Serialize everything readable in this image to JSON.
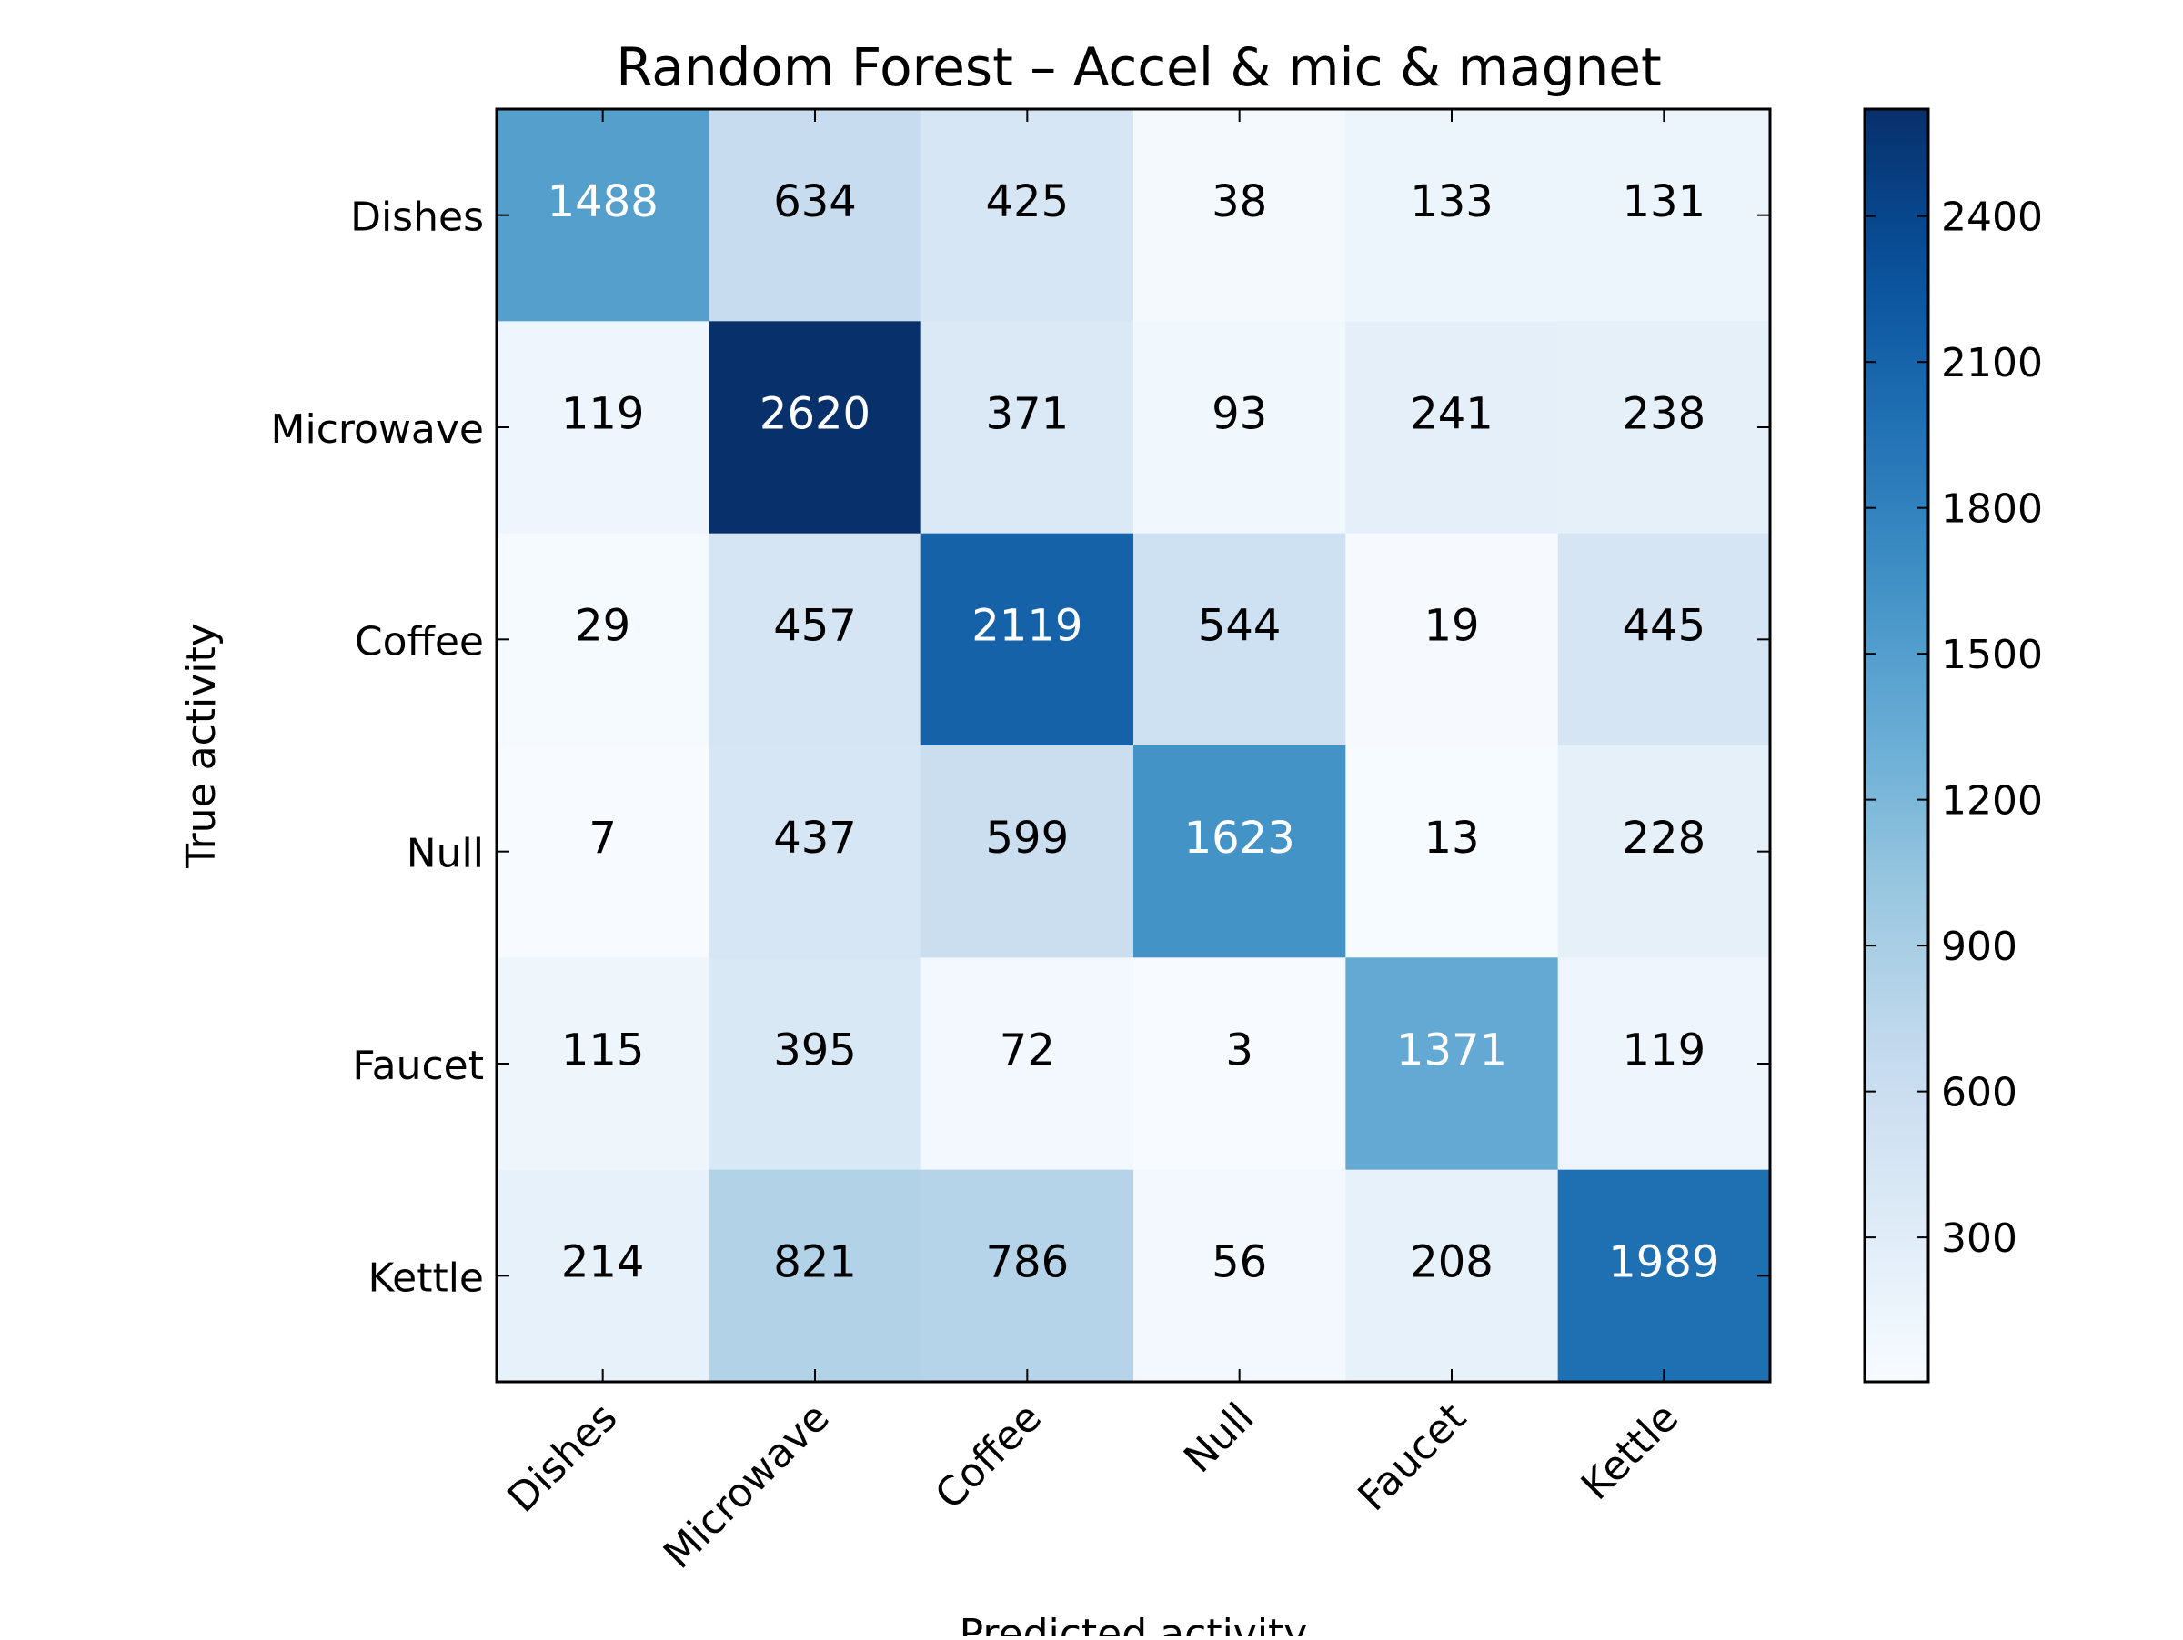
{
  "chart_data": {
    "type": "heatmap",
    "title": "Random Forest – Accel & mic & magnet",
    "xlabel": "Predicted activity",
    "ylabel": "True activity",
    "x_categories": [
      "Dishes",
      "Microwave",
      "Coffee",
      "Null",
      "Faucet",
      "Kettle"
    ],
    "y_categories": [
      "Dishes",
      "Microwave",
      "Coffee",
      "Null",
      "Faucet",
      "Kettle"
    ],
    "values": [
      [
        1488,
        634,
        425,
        38,
        133,
        131
      ],
      [
        119,
        2620,
        371,
        93,
        241,
        238
      ],
      [
        29,
        457,
        2119,
        544,
        19,
        445
      ],
      [
        7,
        437,
        599,
        1623,
        13,
        228
      ],
      [
        115,
        395,
        72,
        3,
        1371,
        119
      ],
      [
        214,
        821,
        786,
        56,
        208,
        1989
      ]
    ],
    "colormap": "Blues",
    "color_range": [
      3,
      2620
    ],
    "colorbar_ticks": [
      300,
      600,
      900,
      1200,
      1500,
      1800,
      2100,
      2400
    ],
    "colors": {
      "low": "#f7fbff",
      "high": "#08306b",
      "text_dark": "#000000",
      "text_light": "#ffffff"
    }
  }
}
